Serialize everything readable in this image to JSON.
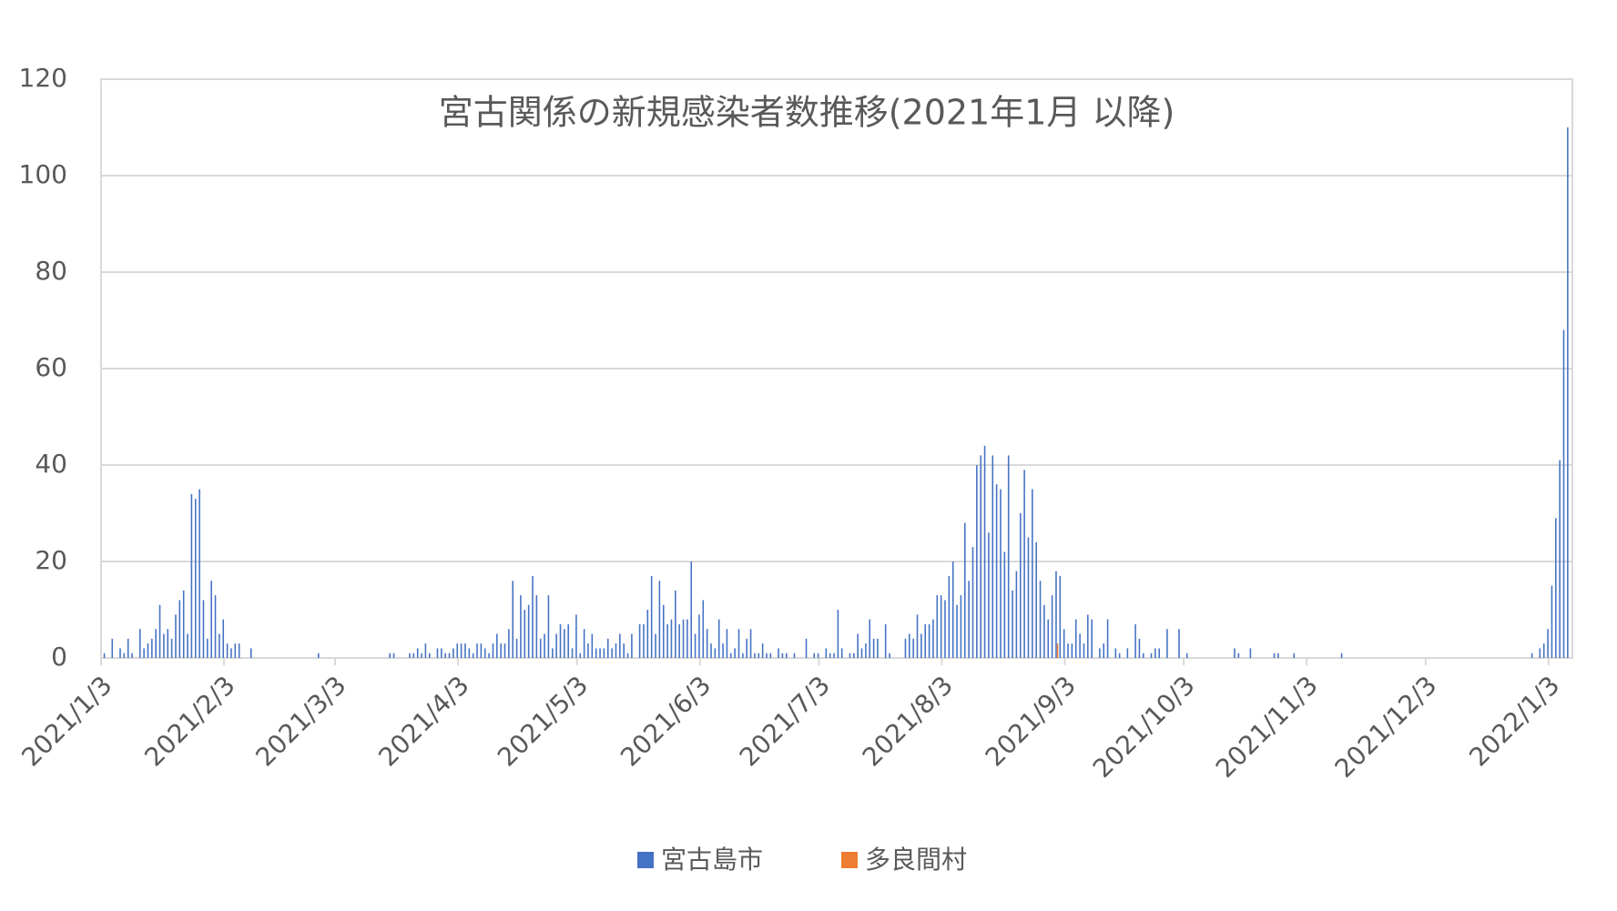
{
  "chart_data": {
    "type": "bar",
    "title": "宮古関係の新規感染者数推移(2021年1月 以降)",
    "x": [
      "2021/1/4",
      "2021/1/6",
      "2021/1/8",
      "2021/1/9",
      "2021/1/10",
      "2021/1/11",
      "2021/1/13",
      "2021/1/14",
      "2021/1/15",
      "2021/1/16",
      "2021/1/17",
      "2021/1/18",
      "2021/1/19",
      "2021/1/20",
      "2021/1/21",
      "2021/1/22",
      "2021/1/23",
      "2021/1/24",
      "2021/1/25",
      "2021/1/26",
      "2021/1/27",
      "2021/1/28",
      "2021/1/29",
      "2021/1/30",
      "2021/1/31",
      "2021/2/1",
      "2021/2/2",
      "2021/2/3",
      "2021/2/4",
      "2021/2/5",
      "2021/2/6",
      "2021/2/7",
      "2021/2/10",
      "2021/2/27",
      "2021/3/17",
      "2021/3/18",
      "2021/3/22",
      "2021/3/23",
      "2021/3/24",
      "2021/3/25",
      "2021/3/26",
      "2021/3/27",
      "2021/3/29",
      "2021/3/30",
      "2021/3/31",
      "2021/4/1",
      "2021/4/2",
      "2021/4/3",
      "2021/4/4",
      "2021/4/5",
      "2021/4/6",
      "2021/4/7",
      "2021/4/8",
      "2021/4/9",
      "2021/4/10",
      "2021/4/11",
      "2021/4/12",
      "2021/4/13",
      "2021/4/14",
      "2021/4/15",
      "2021/4/16",
      "2021/4/17",
      "2021/4/18",
      "2021/4/19",
      "2021/4/20",
      "2021/4/21",
      "2021/4/22",
      "2021/4/23",
      "2021/4/24",
      "2021/4/25",
      "2021/4/26",
      "2021/4/27",
      "2021/4/28",
      "2021/4/29",
      "2021/4/30",
      "2021/5/1",
      "2021/5/2",
      "2021/5/3",
      "2021/5/4",
      "2021/5/5",
      "2021/5/6",
      "2021/5/7",
      "2021/5/8",
      "2021/5/9",
      "2021/5/10",
      "2021/5/11",
      "2021/5/12",
      "2021/5/13",
      "2021/5/14",
      "2021/5/15",
      "2021/5/16",
      "2021/5/17",
      "2021/5/19",
      "2021/5/20",
      "2021/5/21",
      "2021/5/22",
      "2021/5/23",
      "2021/5/24",
      "2021/5/25",
      "2021/5/26",
      "2021/5/27",
      "2021/5/28",
      "2021/5/29",
      "2021/5/30",
      "2021/5/31",
      "2021/6/1",
      "2021/6/2",
      "2021/6/3",
      "2021/6/4",
      "2021/6/5",
      "2021/6/6",
      "2021/6/7",
      "2021/6/8",
      "2021/6/9",
      "2021/6/10",
      "2021/6/11",
      "2021/6/12",
      "2021/6/13",
      "2021/6/14",
      "2021/6/15",
      "2021/6/16",
      "2021/6/17",
      "2021/6/18",
      "2021/6/19",
      "2021/6/20",
      "2021/6/21",
      "2021/6/23",
      "2021/6/24",
      "2021/6/25",
      "2021/6/27",
      "2021/6/30",
      "2021/7/2",
      "2021/7/3",
      "2021/7/5",
      "2021/7/6",
      "2021/7/7",
      "2021/7/8",
      "2021/7/9",
      "2021/7/11",
      "2021/7/12",
      "2021/7/13",
      "2021/7/14",
      "2021/7/15",
      "2021/7/16",
      "2021/7/17",
      "2021/7/18",
      "2021/7/20",
      "2021/7/21",
      "2021/7/25",
      "2021/7/26",
      "2021/7/27",
      "2021/7/28",
      "2021/7/29",
      "2021/7/30",
      "2021/7/31",
      "2021/8/1",
      "2021/8/2",
      "2021/8/3",
      "2021/8/4",
      "2021/8/5",
      "2021/8/6",
      "2021/8/7",
      "2021/8/8",
      "2021/8/9",
      "2021/8/10",
      "2021/8/11",
      "2021/8/12",
      "2021/8/13",
      "2021/8/14",
      "2021/8/15",
      "2021/8/16",
      "2021/8/17",
      "2021/8/18",
      "2021/8/19",
      "2021/8/20",
      "2021/8/21",
      "2021/8/22",
      "2021/8/23",
      "2021/8/24",
      "2021/8/25",
      "2021/8/26",
      "2021/8/27",
      "2021/8/28",
      "2021/8/29",
      "2021/8/30",
      "2021/8/31",
      "2021/9/1",
      "2021/9/2",
      "2021/9/3",
      "2021/9/4",
      "2021/9/5",
      "2021/9/6",
      "2021/9/7",
      "2021/9/8",
      "2021/9/9",
      "2021/9/10",
      "2021/9/12",
      "2021/9/13",
      "2021/9/14",
      "2021/9/16",
      "2021/9/17",
      "2021/9/19",
      "2021/9/21",
      "2021/9/22",
      "2021/9/23",
      "2021/9/25",
      "2021/9/26",
      "2021/9/27",
      "2021/9/29",
      "2021/10/2",
      "2021/10/4",
      "2021/10/16",
      "2021/10/17",
      "2021/10/20",
      "2021/10/26",
      "2021/10/27",
      "2021/10/31",
      "2021/11/12",
      "2021/12/30",
      "2022/1/1",
      "2022/1/2",
      "2022/1/3",
      "2022/1/4",
      "2022/1/5",
      "2022/1/6",
      "2022/1/7",
      "2022/1/8"
    ],
    "series": [
      {
        "name": "宮古島市",
        "color": "#4472c4",
        "values": [
          1,
          4,
          2,
          1,
          4,
          1,
          6,
          2,
          3,
          4,
          6,
          11,
          5,
          6,
          4,
          9,
          12,
          14,
          5,
          34,
          33,
          35,
          12,
          4,
          16,
          13,
          5,
          8,
          3,
          2,
          3,
          3,
          2,
          1,
          1,
          1,
          1,
          1,
          2,
          1,
          3,
          1,
          2,
          2,
          1,
          1,
          2,
          3,
          3,
          3,
          2,
          1,
          3,
          3,
          2,
          1,
          3,
          5,
          3,
          3,
          6,
          16,
          4,
          13,
          10,
          11,
          17,
          13,
          4,
          5,
          13,
          2,
          5,
          7,
          6,
          7,
          2,
          9,
          1,
          6,
          3,
          5,
          2,
          2,
          2,
          4,
          2,
          3,
          5,
          3,
          1,
          5,
          7,
          7,
          10,
          17,
          5,
          16,
          11,
          7,
          8,
          14,
          7,
          8,
          8,
          20,
          5,
          9,
          12,
          6,
          3,
          2,
          8,
          3,
          6,
          1,
          2,
          6,
          1,
          4,
          6,
          1,
          1,
          3,
          1,
          1,
          2,
          1,
          1,
          1,
          4,
          1,
          1,
          2,
          1,
          1,
          10,
          2,
          1,
          1,
          5,
          2,
          3,
          8,
          4,
          4,
          7,
          1,
          4,
          5,
          4,
          9,
          5,
          7,
          7,
          8,
          13,
          13,
          12,
          17,
          20,
          11,
          13,
          28,
          16,
          23,
          40,
          42,
          44,
          26,
          42,
          36,
          35,
          22,
          42,
          14,
          18,
          30,
          39,
          25,
          35,
          24,
          16,
          11,
          8,
          13,
          18,
          17,
          6,
          3,
          3,
          8,
          5,
          3,
          9,
          8,
          2,
          3,
          8,
          2,
          1,
          2,
          7,
          4,
          1,
          1,
          2,
          2,
          6,
          6,
          1,
          2,
          1,
          2,
          1,
          1,
          1,
          1,
          1,
          2,
          3,
          6,
          15,
          29,
          41,
          68,
          110
        ]
      },
      {
        "name": "多良間村",
        "color": "#ed7d31",
        "x": [
          "2021/9/1"
        ],
        "values": [
          3
        ]
      }
    ],
    "xlim": [
      "2021/1/3",
      "2022/1/9"
    ],
    "xticks": [
      "2021/1/3",
      "2021/2/3",
      "2021/3/3",
      "2021/4/3",
      "2021/5/3",
      "2021/6/3",
      "2021/7/3",
      "2021/8/3",
      "2021/9/3",
      "2021/10/3",
      "2021/11/3",
      "2021/12/3",
      "2022/1/3"
    ],
    "ylim": [
      0,
      120
    ],
    "yticks": [
      0,
      20,
      40,
      60,
      80,
      100,
      120
    ],
    "grid": true,
    "legend": "bottom"
  }
}
